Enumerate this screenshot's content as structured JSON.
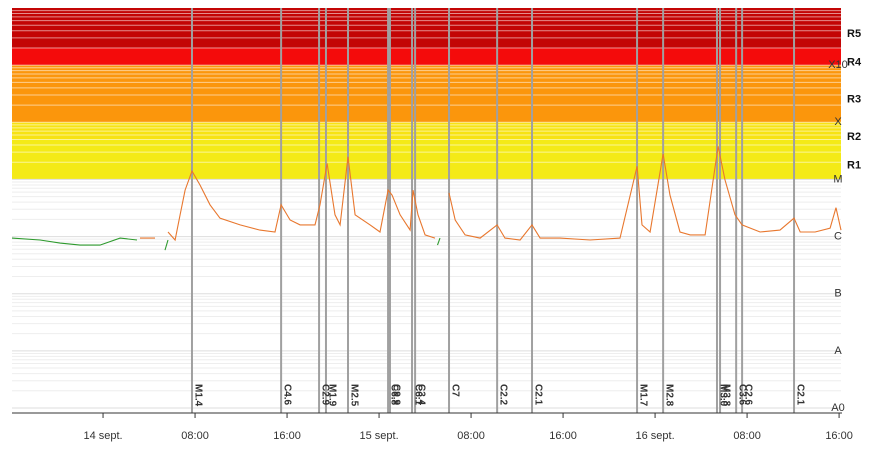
{
  "chart_data": {
    "type": "line",
    "ylog": true,
    "ylim": [
      1e-09,
      0.01
    ],
    "yticks": [
      {
        "value": 1e-09,
        "label": "A0"
      },
      {
        "value": 1e-08,
        "label": "A"
      },
      {
        "value": 1e-07,
        "label": "B"
      },
      {
        "value": 1e-06,
        "label": "C"
      },
      {
        "value": 1e-05,
        "label": "M"
      },
      {
        "value": 0.0001,
        "label": "X"
      },
      {
        "value": 0.001,
        "label": "X10"
      }
    ],
    "xlim": [
      "13 sept. 16:05",
      "16 sept. 16:10"
    ],
    "xticks": [
      {
        "value": "14 sept. 00:00",
        "label": "14 sept."
      },
      {
        "value": "14 sept. 08:00",
        "label": "08:00"
      },
      {
        "value": "14 sept. 16:00",
        "label": "16:00"
      },
      {
        "value": "15 sept. 00:00",
        "label": "15 sept."
      },
      {
        "value": "15 sept. 08:00",
        "label": "08:00"
      },
      {
        "value": "15 sept. 16:00",
        "label": "16:00"
      },
      {
        "value": "16 sept. 00:00",
        "label": "16 sept."
      },
      {
        "value": "16 sept. 08:00",
        "label": "08:00"
      },
      {
        "value": "16 sept. 16:00",
        "label": "16:00"
      }
    ],
    "bands": [
      {
        "label": "R1",
        "from": 1e-05,
        "to": 5e-05,
        "color": "#f4ea17"
      },
      {
        "label": "R2",
        "from": 5e-05,
        "to": 0.0001,
        "color": "#f7e312"
      },
      {
        "label": "R3",
        "from": 0.0001,
        "to": 0.001,
        "color": "#fb960c"
      },
      {
        "label": "R4",
        "from": 0.001,
        "to": 0.002,
        "color": "#f40b0b"
      },
      {
        "label": "R5",
        "from": 0.002,
        "to": 0.01,
        "color": "#c30505"
      }
    ],
    "x": [
      "13 sept. 16:05",
      "13 sept. 18:31",
      "13 sept. 20:16",
      "13 sept. 22:00",
      "13 sept. 23:44",
      "14 sept. 01:29",
      "14 sept. 02:57",
      "14 sept. 03:13",
      "14 sept. 04:31",
      "14 sept. 05:23",
      "14 sept. 05:39",
      "14 sept. 06:16",
      "14 sept. 06:42",
      "14 sept. 07:08",
      "14 sept. 07:44",
      "14 sept. 08:26",
      "14 sept. 09:18",
      "14 sept. 10:10",
      "14 sept. 11:55",
      "14 sept. 13:39",
      "14 sept. 14:57",
      "14 sept. 15:29",
      "14 sept. 16:16",
      "14 sept. 17:08",
      "14 sept. 18:26",
      "14 sept. 18:52",
      "14 sept. 19:29",
      "14 sept. 20:10",
      "14 sept. 20:37",
      "14 sept. 21:18",
      "14 sept. 21:55",
      "14 sept. 23:13",
      "15 sept. 00:05",
      "15 sept. 00:47",
      "15 sept. 01:08",
      "15 sept. 01:50",
      "15 sept. 02:42",
      "15 sept. 02:57",
      "15 sept. 03:23",
      "15 sept. 04:00",
      "15 sept. 04:52",
      "15 sept. 05:05",
      "15 sept. 05:18",
      "15 sept. 06:05",
      "15 sept. 06:37",
      "15 sept. 07:29",
      "15 sept. 08:47",
      "15 sept. 10:16",
      "15 sept. 10:57",
      "15 sept. 12:16",
      "15 sept. 13:18",
      "15 sept. 14:00",
      "15 sept. 15:44",
      "15 sept. 18:21",
      "15 sept. 20:57",
      "15 sept. 22:26",
      "15 sept. 22:52",
      "15 sept. 23:34",
      "16 sept. 00:42",
      "16 sept. 01:18",
      "16 sept. 02:10",
      "16 sept. 03:03",
      "16 sept. 04:21",
      "16 sept. 05:29",
      "16 sept. 06:05",
      "16 sept. 06:57",
      "16 sept. 07:34",
      "16 sept. 09:08",
      "16 sept. 10:52",
      "16 sept. 12:05",
      "16 sept. 12:37",
      "16 sept. 13:55",
      "16 sept. 15:13",
      "16 sept. 15:44",
      "16 sept. 16:10"
    ],
    "series": [
      {
        "color": "#e8772e",
        "values": [
          null,
          null,
          null,
          null,
          null,
          null,
          null,
          9.4e-07,
          9.4e-07,
          null,
          1.2e-06,
          8.7e-07,
          2.4e-06,
          6.5e-06,
          1.4e-05,
          8e-06,
          3.6e-06,
          2.1e-06,
          1.6e-06,
          1.3e-06,
          1.2e-06,
          3.6e-06,
          1.95e-06,
          1.6e-06,
          1.6e-06,
          3.6e-06,
          1.9e-05,
          2.4e-06,
          1.6e-06,
          2.5e-05,
          2.4e-06,
          1.6e-06,
          1.2e-06,
          6.5e-06,
          5.3e-06,
          2.4e-06,
          1.3e-06,
          6.5e-06,
          2.4e-06,
          1.07e-06,
          9.4e-07,
          null,
          null,
          5.8e-06,
          1.95e-06,
          1.07e-06,
          9.4e-07,
          1.6e-06,
          9.4e-07,
          8.7e-07,
          1.6e-06,
          9.4e-07,
          9.4e-07,
          8.7e-07,
          9.4e-07,
          1.7e-05,
          1.6e-06,
          1.2e-06,
          2.8e-05,
          5.3e-06,
          1.2e-06,
          1.07e-06,
          1.07e-06,
          3.8e-05,
          9.8e-06,
          2.4e-06,
          1.6e-06,
          1.2e-06,
          1.3e-06,
          2.1e-06,
          1.2e-06,
          1.2e-06,
          1.4e-06,
          3.2e-06,
          1.3e-06
        ]
      },
      {
        "color": "#2e9a2e",
        "values": [
          9.4e-07,
          8.7e-07,
          7.7e-07,
          7.1e-07,
          7.1e-07,
          9.4e-07,
          8.7e-07,
          null,
          null,
          5.8e-07,
          8.7e-07,
          null,
          null,
          null,
          null,
          null,
          null,
          null,
          null,
          null,
          null,
          null,
          null,
          null,
          null,
          null,
          null,
          null,
          null,
          null,
          null,
          null,
          null,
          null,
          null,
          null,
          null,
          null,
          null,
          null,
          null,
          7.1e-07,
          9.4e-07,
          null,
          null,
          null,
          null,
          null,
          null,
          null,
          null,
          null,
          null,
          null,
          null,
          null,
          null,
          null,
          null,
          null,
          null,
          null,
          null,
          null,
          null,
          null,
          null,
          null,
          null,
          null,
          null,
          null,
          null,
          null,
          null
        ]
      }
    ],
    "flares": [
      {
        "time": "14 sept. 07:44",
        "label": "M1.4",
        "color": "#d9534f"
      },
      {
        "time": "14 sept. 15:29",
        "label": "C4.6",
        "color": "#f0a30a"
      },
      {
        "time": "14 sept. 18:47",
        "label": "C2.9",
        "color": "#f0a30a"
      },
      {
        "time": "14 sept. 19:23",
        "label": "M1.9",
        "color": "#d9534f"
      },
      {
        "time": "14 sept. 21:18",
        "label": "M2.5",
        "color": "#d9534f"
      },
      {
        "time": "15 sept. 00:47",
        "label": "C6.8",
        "color": "#f0a30a"
      },
      {
        "time": "15 sept. 00:57",
        "label": "C9.9",
        "color": "#f0a30a"
      },
      {
        "time": "15 sept. 02:52",
        "label": "C6.1",
        "color": "#f0a30a"
      },
      {
        "time": "15 sept. 03:08",
        "label": "C3.4",
        "color": "#f0a30a"
      },
      {
        "time": "15 sept. 06:05",
        "label": "C7",
        "color": "#f0a30a"
      },
      {
        "time": "15 sept. 10:16",
        "label": "C2.2",
        "color": "#f0a30a"
      },
      {
        "time": "15 sept. 13:18",
        "label": "C2.1",
        "color": "#f0a30a"
      },
      {
        "time": "15 sept. 22:26",
        "label": "M1.7",
        "color": "#d9534f"
      },
      {
        "time": "16 sept. 00:42",
        "label": "M2.8",
        "color": "#d9534f"
      },
      {
        "time": "16 sept. 05:23",
        "label": "M3.0",
        "color": "#d9534f"
      },
      {
        "time": "16 sept. 05:39",
        "label": "M3.8",
        "color": "#d9534f"
      },
      {
        "time": "16 sept. 07:03",
        "label": "C3.6",
        "color": "#f0a30a"
      },
      {
        "time": "16 sept. 07:34",
        "label": "C2.6",
        "color": "#f0a30a"
      },
      {
        "time": "16 sept. 12:05",
        "label": "C2.1",
        "color": "#f0a30a"
      }
    ]
  }
}
